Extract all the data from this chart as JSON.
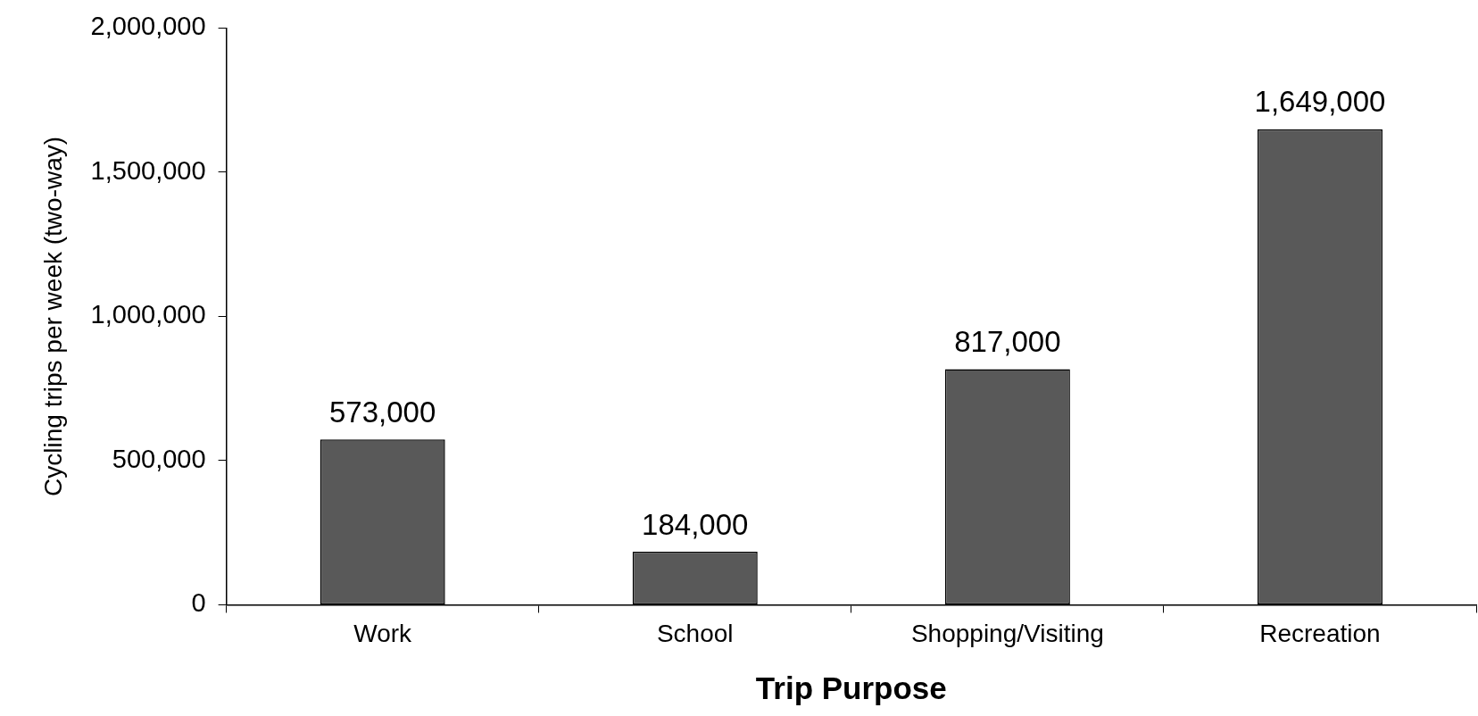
{
  "chart_data": {
    "type": "bar",
    "xlabel": "Trip Purpose",
    "ylabel": "Cycling trips per week (two-way)",
    "categories": [
      "Work",
      "School",
      "Shopping/Visiting",
      "Recreation"
    ],
    "values": [
      573000,
      184000,
      817000,
      1649000
    ],
    "color": "#595959",
    "value_labels": [
      "573,000",
      "184,000",
      "817,000",
      "1,649,000"
    ],
    "ylim": [
      0,
      2000000
    ],
    "yticks": [
      0,
      {
        "value": 500000,
        "label": "500,000"
      },
      {
        "value": 1000000,
        "label": "1,000,000"
      },
      {
        "value": 1500000,
        "label": "1,500,000"
      },
      {
        "value": 2000000,
        "label": "2,000,000"
      }
    ],
    "grid": false,
    "legend": false
  }
}
